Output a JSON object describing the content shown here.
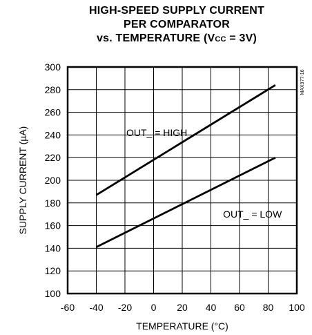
{
  "title": {
    "line1": "HIGH-SPEED SUPPLY CURRENT",
    "line2": "PER COMPARATOR",
    "line3_pre": "vs. TEMPERATURE (V",
    "line3_sub": "CC",
    "line3_post": " = 3V)"
  },
  "figure_id": "MAX977-16",
  "chart_data": {
    "type": "line",
    "xlabel": "TEMPERATURE (°C)",
    "ylabel": "SUPPLY CURRENT (µA)",
    "xlim": [
      -60,
      100
    ],
    "ylim": [
      100,
      300
    ],
    "xticks": [
      -60,
      -40,
      -20,
      0,
      20,
      40,
      60,
      80,
      100
    ],
    "yticks": [
      100,
      120,
      140,
      160,
      180,
      200,
      220,
      240,
      260,
      280,
      300
    ],
    "grid": true,
    "series": [
      {
        "name": "OUT_ = HIGH",
        "x": [
          -40,
          85
        ],
        "y": [
          187,
          284
        ]
      },
      {
        "name": "OUT_ = LOW",
        "x": [
          -40,
          85
        ],
        "y": [
          141,
          220
        ]
      }
    ]
  }
}
